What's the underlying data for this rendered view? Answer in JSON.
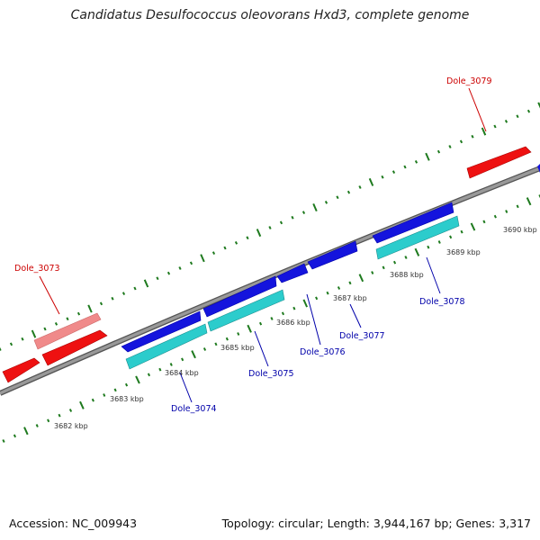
{
  "title": "Candidatus Desulfococcus oleovorans Hxd3, complete genome",
  "footer": {
    "accession": "Accession: NC_009943",
    "topology": "Topology: circular; Length: 3,944,167 bp; Genes: 3,317"
  },
  "colors": {
    "background": "#ffffff",
    "backbone": "#8c8c8c",
    "tick": "#1e7a1e",
    "gene_forward": "#ee1111",
    "gene_forward_light": "#f08a8a",
    "gene_reverse": "#1414dd",
    "gene_reverse_light": "#2ccccc",
    "label_red": "#cc0000",
    "label_blue": "#0000aa"
  },
  "kbp_labels": [
    "3682 kbp",
    "3683 kbp",
    "3684 kbp",
    "3685 kbp",
    "3686 kbp",
    "3687 kbp",
    "3688 kbp",
    "3689 kbp",
    "3690 kbp"
  ],
  "gene_labels": [
    {
      "text": "Dole_3073",
      "strand": "forward"
    },
    {
      "text": "Dole_3074",
      "strand": "reverse"
    },
    {
      "text": "Dole_3075",
      "strand": "reverse"
    },
    {
      "text": "Dole_3076",
      "strand": "reverse"
    },
    {
      "text": "Dole_3077",
      "strand": "reverse"
    },
    {
      "text": "Dole_3078",
      "strand": "reverse"
    },
    {
      "text": "Dole_3079",
      "strand": "forward"
    }
  ]
}
